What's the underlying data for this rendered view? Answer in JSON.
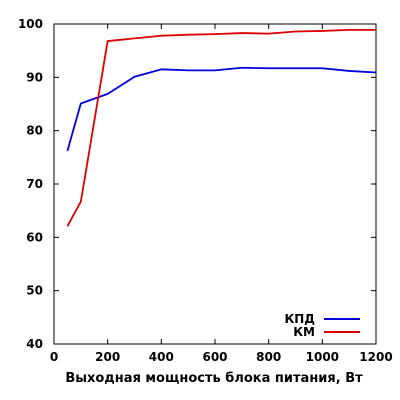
{
  "chart_data": {
    "type": "line",
    "title": "",
    "xlabel": "Выходная мощность блока питания, Вт",
    "ylabel": "",
    "xlim": [
      0,
      1200
    ],
    "ylim": [
      40,
      100
    ],
    "xticks": [
      0,
      200,
      400,
      600,
      800,
      1000,
      1200
    ],
    "yticks": [
      40,
      50,
      60,
      70,
      80,
      90,
      100
    ],
    "grid": false,
    "legend_position": "bottom-right",
    "x": [
      50,
      100,
      200,
      300,
      400,
      500,
      600,
      700,
      800,
      900,
      1000,
      1100,
      1200
    ],
    "series": [
      {
        "name": "КПД",
        "color": "#0000dd",
        "values": [
          76.2,
          85.1,
          86.9,
          90.1,
          91.5,
          91.3,
          91.3,
          91.8,
          91.7,
          91.7,
          91.7,
          91.2,
          90.9
        ]
      },
      {
        "name": "КМ",
        "color": "#dd0000",
        "values": [
          62.1,
          66.7,
          96.8,
          97.3,
          97.8,
          98.0,
          98.1,
          98.3,
          98.2,
          98.6,
          98.7,
          98.9,
          98.9
        ]
      }
    ]
  }
}
